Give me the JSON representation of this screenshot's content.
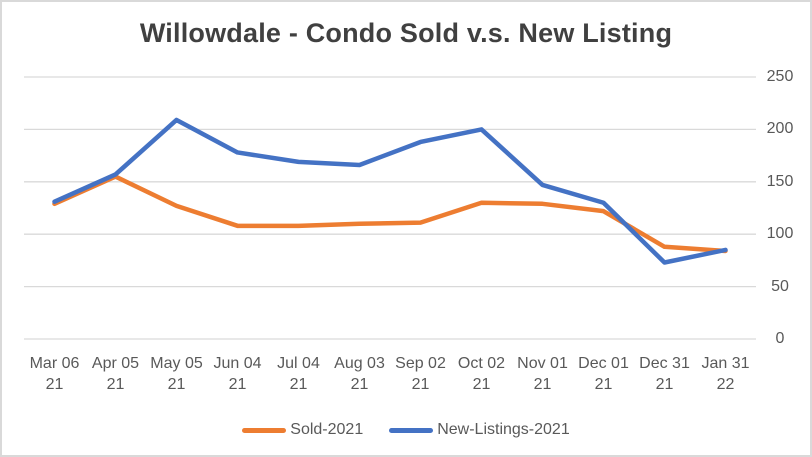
{
  "chart_data": {
    "type": "line",
    "title": "Willowdale - Condo Sold v.s. New Listing",
    "categories": [
      "Mar 06 21",
      "Apr 05 21",
      "May 05 21",
      "Jun 04 21",
      "Jul 04 21",
      "Aug 03 21",
      "Sep 02 21",
      "Oct 02 21",
      "Nov 01 21",
      "Dec 01 21",
      "Dec 31 21",
      "Jan 31 22"
    ],
    "series": [
      {
        "name": "Sold-2021",
        "color": "#ED7D31",
        "values": [
          129,
          155,
          127,
          108,
          108,
          110,
          111,
          130,
          129,
          122,
          88,
          84
        ]
      },
      {
        "name": "New-Listings-2021",
        "color": "#4472C4",
        "values": [
          131,
          157,
          209,
          178,
          169,
          166,
          188,
          200,
          147,
          130,
          73,
          85
        ]
      }
    ],
    "xlabel": "",
    "ylabel": "",
    "ylim": [
      0,
      250
    ],
    "y_ticks": [
      0,
      50,
      100,
      150,
      200,
      250
    ],
    "y_axis_side": "right",
    "grid": true,
    "legend_position": "bottom"
  },
  "styles": {
    "grid_color": "#D9D9D9",
    "axis_text_color": "#595959",
    "title_color": "#404040",
    "border_color": "#D9D9D9",
    "background": "#FFFFFF",
    "line_width": 4.5
  }
}
